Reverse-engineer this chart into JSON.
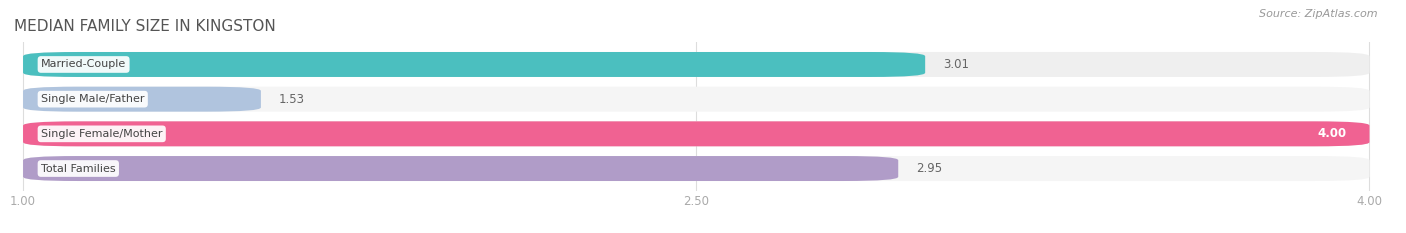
{
  "title": "MEDIAN FAMILY SIZE IN KINGSTON",
  "source": "Source: ZipAtlas.com",
  "categories": [
    "Married-Couple",
    "Single Male/Father",
    "Single Female/Mother",
    "Total Families"
  ],
  "values": [
    3.01,
    1.53,
    4.0,
    2.95
  ],
  "bar_colors": [
    "#4bbfbf",
    "#b0c4de",
    "#f06292",
    "#b09cc8"
  ],
  "bar_bg_colors": [
    "#efefef",
    "#f5f5f5",
    "#efefef",
    "#f5f5f5"
  ],
  "xlim": [
    1.0,
    4.0
  ],
  "xticks": [
    1.0,
    2.5,
    4.0
  ],
  "xtick_labels": [
    "1.00",
    "2.50",
    "4.00"
  ],
  "background_color": "#ffffff",
  "title_fontsize": 11,
  "label_fontsize": 8,
  "value_fontsize": 8.5,
  "source_fontsize": 8,
  "grid_color": "#dddddd",
  "title_color": "#555555"
}
